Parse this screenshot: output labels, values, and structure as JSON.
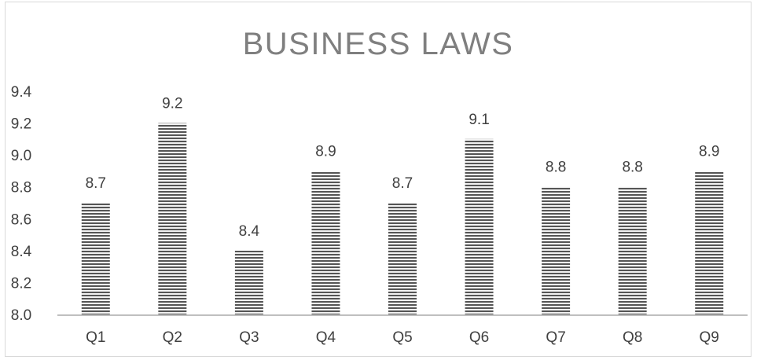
{
  "chart_data": {
    "type": "bar",
    "title": "BUSINESS LAWS",
    "xlabel": "",
    "ylabel": "",
    "categories": [
      "Q1",
      "Q2",
      "Q3",
      "Q4",
      "Q5",
      "Q6",
      "Q7",
      "Q8",
      "Q9"
    ],
    "values": [
      8.7,
      9.2,
      8.4,
      8.9,
      8.7,
      9.1,
      8.8,
      8.8,
      8.9
    ],
    "data_labels": [
      "8.7",
      "9.2",
      "8.4",
      "8.9",
      "8.7",
      "9.1",
      "8.8",
      "8.8",
      "8.9"
    ],
    "ylim": [
      8.0,
      9.4
    ],
    "yticks": [
      "8.0",
      "8.2",
      "8.4",
      "8.6",
      "8.8",
      "9.0",
      "9.2",
      "9.4"
    ],
    "grid": false,
    "legend": "none",
    "colors": {
      "bar_stripe_dark": "#555555",
      "bar_stripe_light": "#f2f2f2",
      "axis": "#bfbfbf",
      "text": "#404040",
      "title": "#7f7f7f"
    }
  }
}
